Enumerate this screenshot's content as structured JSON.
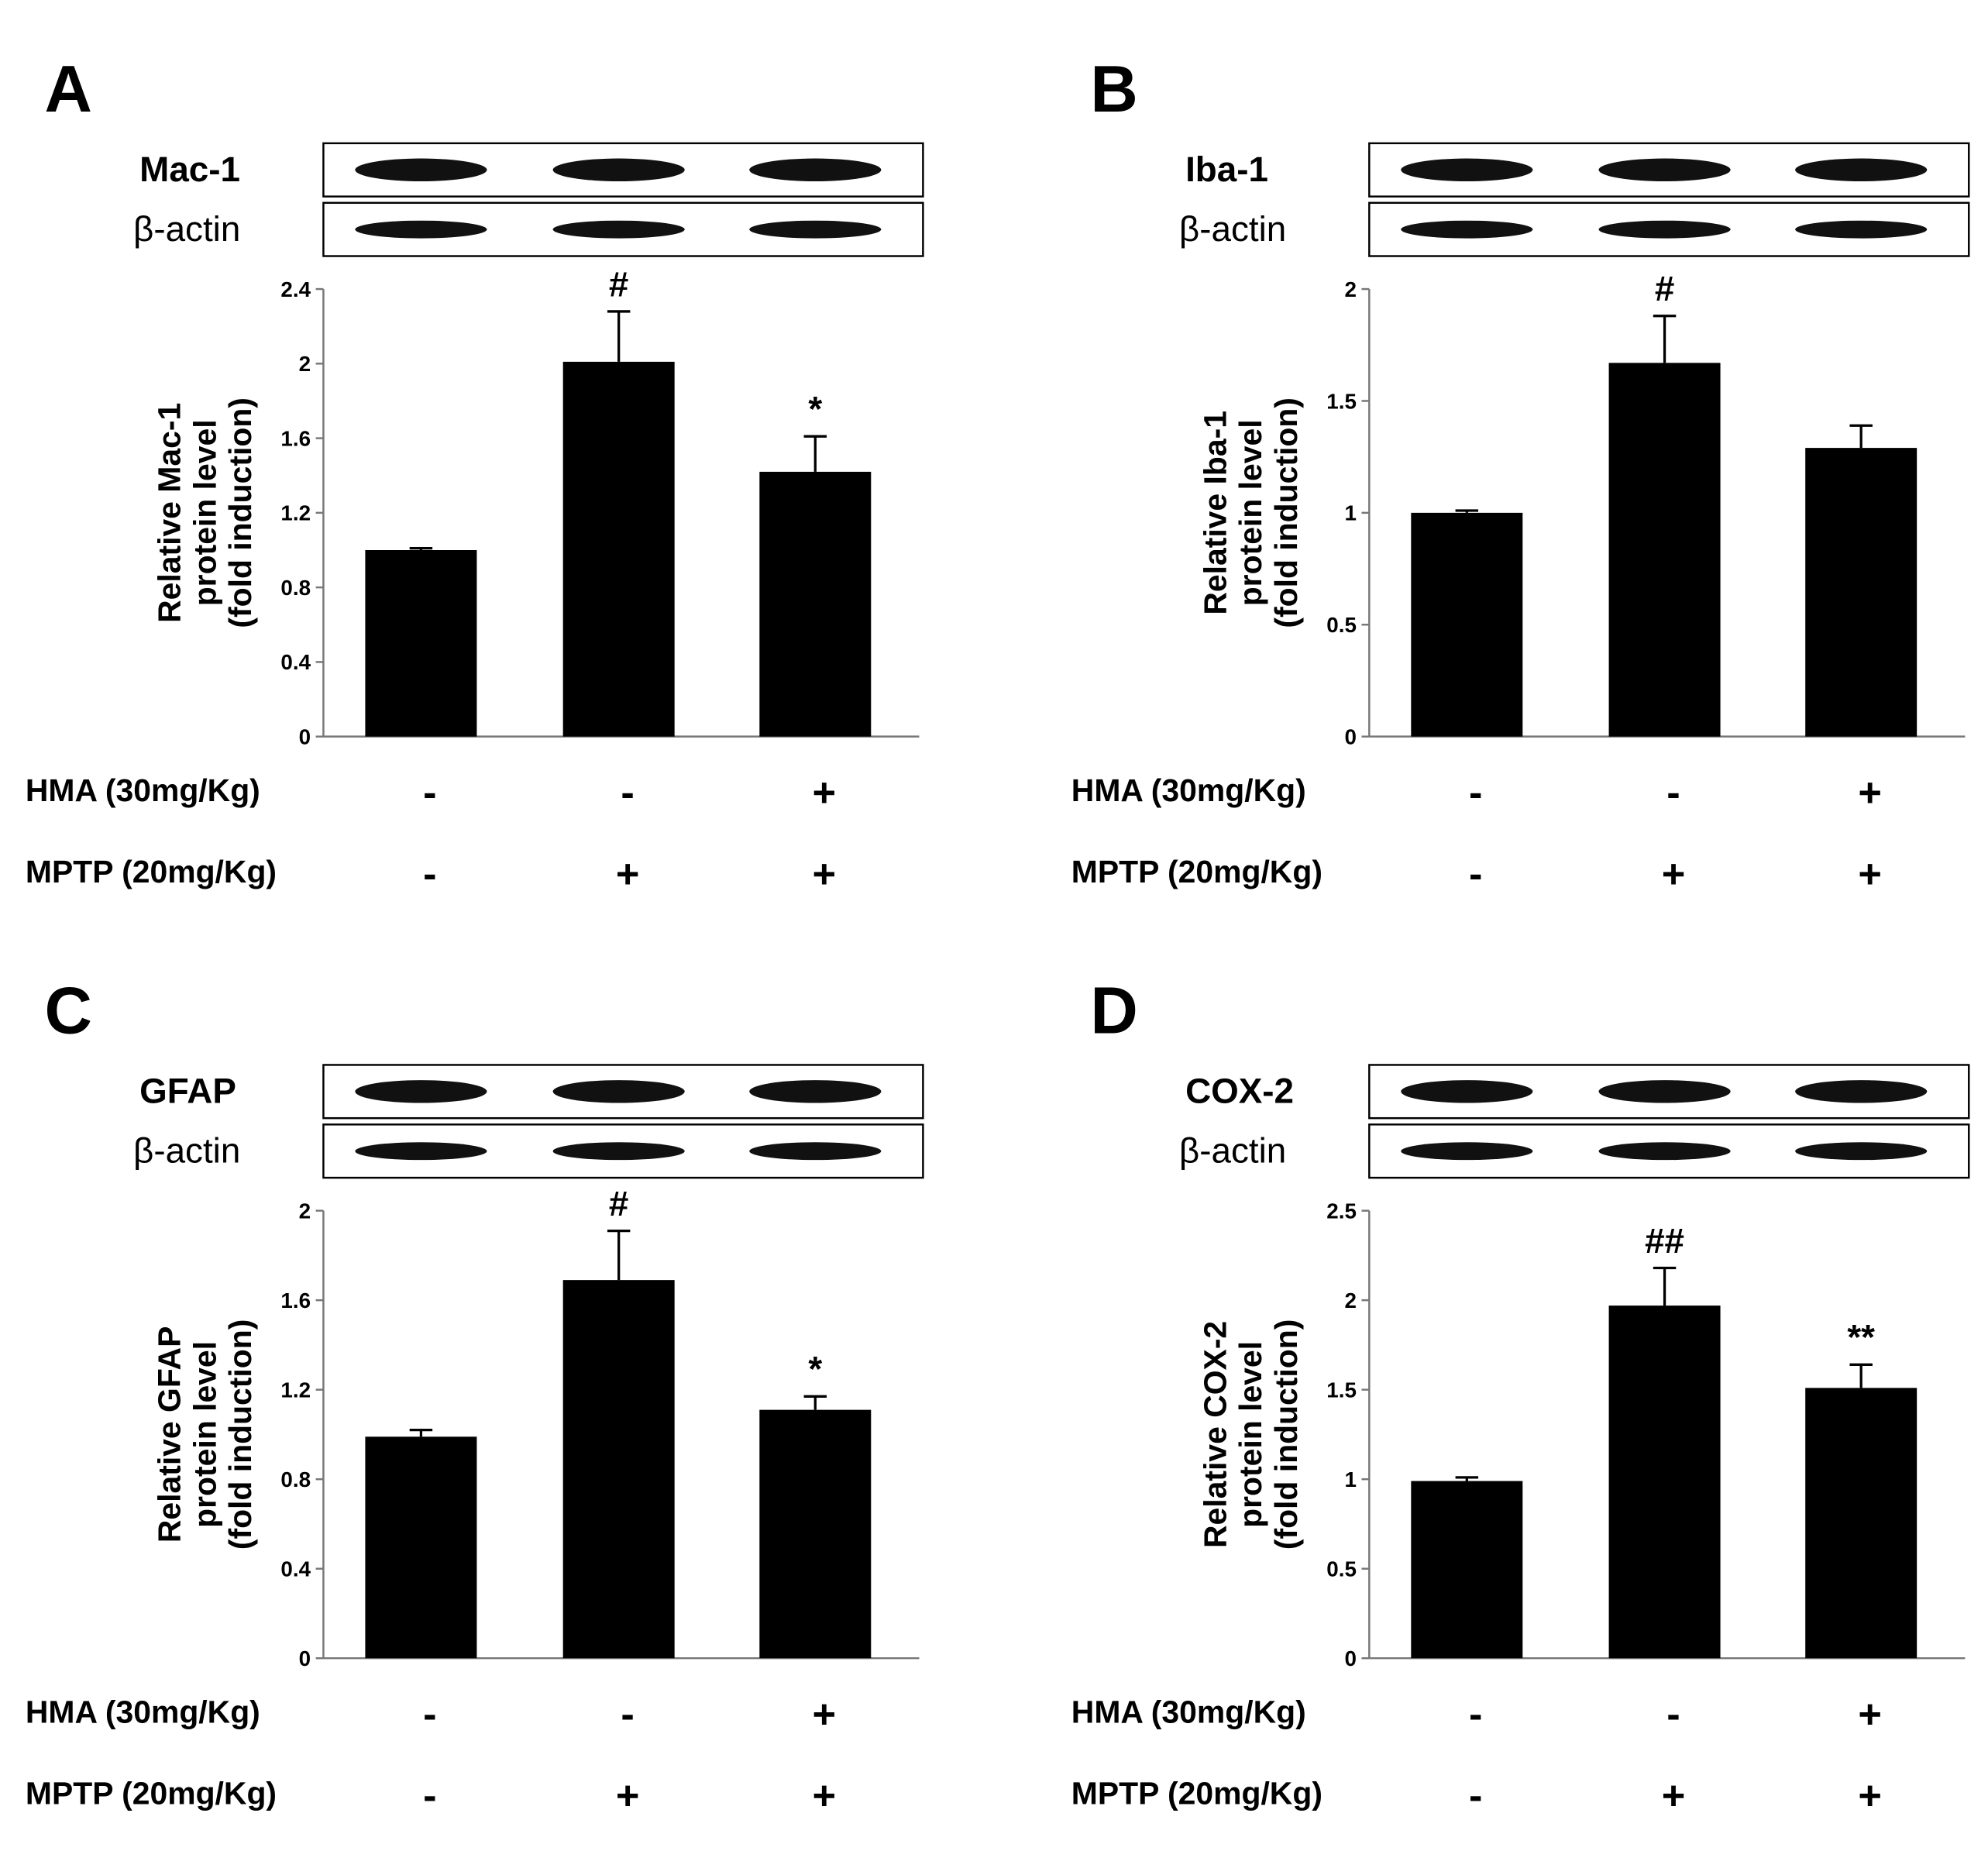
{
  "chart_data": [
    {
      "type": "bar",
      "panel": "A",
      "blots": [
        "Mac-1",
        "β-actin"
      ],
      "ylabel": [
        "Relative Mac-1",
        "protein level",
        "(fold induction)"
      ],
      "categories": [
        null,
        null,
        null
      ],
      "values": [
        1.0,
        2.01,
        1.42
      ],
      "errors": [
        0.01,
        0.27,
        0.19
      ],
      "annotations": [
        null,
        "#",
        "*"
      ],
      "color": "#000000",
      "ylim": [
        0,
        2.4
      ],
      "yticks": [
        0,
        0.4,
        0.8,
        1.2,
        1.6,
        2,
        2.4
      ],
      "treatments": [
        {
          "label": "HMA (30mg/Kg)",
          "signs": [
            "-",
            "-",
            "+"
          ]
        },
        {
          "label": "MPTP (20mg/Kg)",
          "signs": [
            "-",
            "+",
            "+"
          ]
        }
      ]
    },
    {
      "type": "bar",
      "panel": "B",
      "blots": [
        "Iba-1",
        "β-actin"
      ],
      "ylabel": [
        "Relative Iba-1",
        "protein level",
        "(fold induction)"
      ],
      "categories": [
        null,
        null,
        null
      ],
      "values": [
        1.0,
        1.67,
        1.29
      ],
      "errors": [
        0.01,
        0.21,
        0.1
      ],
      "annotations": [
        null,
        "#",
        null
      ],
      "color": "#000000",
      "ylim": [
        0,
        2
      ],
      "yticks": [
        0,
        0.5,
        1,
        1.5,
        2
      ],
      "treatments": [
        {
          "label": "HMA (30mg/Kg)",
          "signs": [
            "-",
            "-",
            "+"
          ]
        },
        {
          "label": "MPTP (20mg/Kg)",
          "signs": [
            "-",
            "+",
            "+"
          ]
        }
      ]
    },
    {
      "type": "bar",
      "panel": "C",
      "blots": [
        "GFAP",
        "β-actin"
      ],
      "ylabel": [
        "Relative GFAP",
        "protein level",
        "(fold induction)"
      ],
      "categories": [
        null,
        null,
        null
      ],
      "values": [
        0.99,
        1.69,
        1.11
      ],
      "errors": [
        0.03,
        0.22,
        0.06
      ],
      "annotations": [
        null,
        "#",
        "*"
      ],
      "color": "#000000",
      "ylim": [
        0,
        2
      ],
      "yticks": [
        0,
        0.4,
        0.8,
        1.2,
        1.6,
        2
      ],
      "treatments": [
        {
          "label": "HMA (30mg/Kg)",
          "signs": [
            "-",
            "-",
            "+"
          ]
        },
        {
          "label": "MPTP (20mg/Kg)",
          "signs": [
            "-",
            "+",
            "+"
          ]
        }
      ]
    },
    {
      "type": "bar",
      "panel": "D",
      "blots": [
        "COX-2",
        "β-actin"
      ],
      "ylabel": [
        "Relative COX-2",
        "protein level",
        "(fold induction)"
      ],
      "categories": [
        null,
        null,
        null
      ],
      "values": [
        0.99,
        1.97,
        1.51
      ],
      "errors": [
        0.02,
        0.21,
        0.13
      ],
      "annotations": [
        null,
        "##",
        "**"
      ],
      "color": "#000000",
      "ylim": [
        0,
        2.5
      ],
      "yticks": [
        0,
        0.5,
        1,
        1.5,
        2,
        2.5
      ],
      "treatments": [
        {
          "label": "HMA (30mg/Kg)",
          "signs": [
            "-",
            "-",
            "+"
          ]
        },
        {
          "label": "MPTP (20mg/Kg)",
          "signs": [
            "-",
            "+",
            "+"
          ]
        }
      ]
    }
  ]
}
